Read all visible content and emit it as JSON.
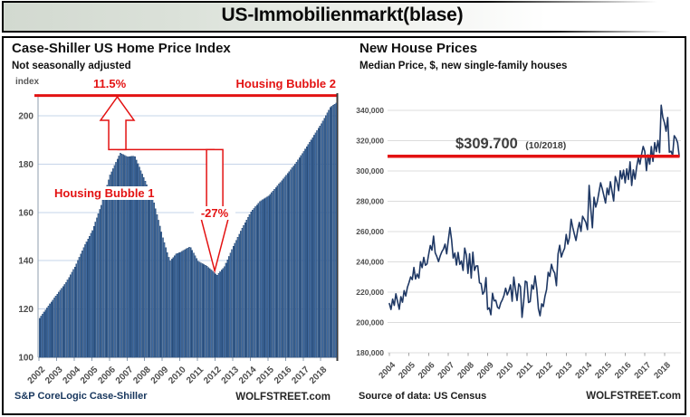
{
  "page": {
    "title": "US-Immobilienmarkt(blase)"
  },
  "colors": {
    "red": "#e31212",
    "bar_fill": "#3f6aa0",
    "bar_stroke": "#1d3a60",
    "line": "#1f3864",
    "grid_left": "#c6d4e9",
    "grid_right": "#dcdcdc",
    "axis": "#8c9cae",
    "tick_text": "#4d4d4d"
  },
  "chart_data": [
    {
      "type": "bar",
      "title": "Case-Shiller US Home Price Index",
      "subtitle": "Not seasonally adjusted",
      "unit_label": "index",
      "source_label": "S&P CoreLogic Case-Shiller",
      "brand_label": "WOLFSTREET.com",
      "ylim": [
        100,
        210
      ],
      "yticks": [
        100,
        120,
        140,
        160,
        180,
        200
      ],
      "xticks": [
        "2002",
        "2003",
        "2004",
        "2005",
        "2006",
        "2007",
        "2008",
        "2009",
        "2010",
        "2011",
        "2012",
        "2013",
        "2014",
        "2015",
        "2016",
        "2017",
        "2018"
      ],
      "x_start": 2002.0,
      "x_end": 2018.92,
      "anchors_year_value": [
        [
          2002.0,
          116.2
        ],
        [
          2002.5,
          121.3
        ],
        [
          2003.0,
          126.2
        ],
        [
          2003.5,
          131.0
        ],
        [
          2004.0,
          137.4
        ],
        [
          2004.5,
          145.5
        ],
        [
          2005.0,
          152.5
        ],
        [
          2005.5,
          163.0
        ],
        [
          2006.0,
          175.5
        ],
        [
          2006.58,
          184.6
        ],
        [
          2007.0,
          183.0
        ],
        [
          2007.4,
          183.4
        ],
        [
          2008.0,
          173.0
        ],
        [
          2008.5,
          164.0
        ],
        [
          2009.0,
          149.5
        ],
        [
          2009.4,
          139.8
        ],
        [
          2009.75,
          142.8
        ],
        [
          2010.0,
          143.5
        ],
        [
          2010.55,
          145.9
        ],
        [
          2011.0,
          139.8
        ],
        [
          2011.5,
          137.8
        ],
        [
          2012.08,
          134.0
        ],
        [
          2012.5,
          137.6
        ],
        [
          2013.0,
          146.0
        ],
        [
          2013.5,
          153.5
        ],
        [
          2014.0,
          160.3
        ],
        [
          2014.5,
          164.5
        ],
        [
          2015.0,
          166.8
        ],
        [
          2015.5,
          171.0
        ],
        [
          2016.0,
          175.4
        ],
        [
          2016.5,
          180.0
        ],
        [
          2017.0,
          185.3
        ],
        [
          2017.5,
          191.0
        ],
        [
          2018.0,
          196.8
        ],
        [
          2018.5,
          203.5
        ],
        [
          2018.92,
          205.8
        ]
      ],
      "annotations": {
        "peak_gain_label": "11.5%",
        "bubble2_label": "Housing Bubble 2",
        "bubble1_label": "Housing Bubble 1",
        "drop_label": "-27%",
        "top_line_value": 208.4,
        "prior_peak_line_value": 186.0,
        "up_arrow_x_year": 2006.45,
        "down_arrow_x_year": 2011.98,
        "trough_value": 135.8
      }
    },
    {
      "type": "line",
      "title": "New House Prices",
      "subtitle": "Median Price, $, new single-family houses",
      "source_label": "Source of data: US Census",
      "brand_label": "WOLFSTREET.com",
      "ylim": [
        180000,
        348000
      ],
      "yticks": [
        180000,
        200000,
        220000,
        240000,
        260000,
        280000,
        300000,
        320000,
        340000
      ],
      "ytick_labels": [
        "180,000",
        "200,000",
        "220,000",
        "240,000",
        "260,000",
        "280,000",
        "300,000",
        "320,000",
        "340,000"
      ],
      "xticks": [
        "2004",
        "2005",
        "2006",
        "2007",
        "2008",
        "2009",
        "2010",
        "2011",
        "2012",
        "2013",
        "2014",
        "2015",
        "2016",
        "2017",
        "2018"
      ],
      "x_start": 2004.0,
      "monthly_values": [
        212500,
        208600,
        215400,
        211300,
        218900,
        214000,
        208700,
        217000,
        213400,
        221000,
        217500,
        223100,
        226300,
        230100,
        228300,
        236300,
        228700,
        232000,
        229300,
        240100,
        236200,
        243000,
        237800,
        238600,
        244900,
        250800,
        247700,
        257000,
        246000,
        243500,
        240200,
        243900,
        246600,
        248400,
        251700,
        245300,
        254400,
        262600,
        254600,
        242500,
        245800,
        237900,
        246200,
        238300,
        240600,
        234300,
        249100,
        244600,
        232400,
        245300,
        229300,
        246400,
        234300,
        237300,
        237400,
        226200,
        225700,
        218700,
        220400,
        229600,
        208600,
        209700,
        205100,
        219200,
        214200,
        214700,
        210100,
        209200,
        212900,
        215000,
        217900,
        222600,
        218200,
        220900,
        224800,
        214000,
        230000,
        221800,
        214500,
        225500,
        223700,
        203400,
        213600,
        227300,
        226600,
        213200,
        213800,
        224700,
        222000,
        230700,
        222200,
        209100,
        204400,
        212300,
        210500,
        217200,
        221700,
        233100,
        230400,
        238400,
        234500,
        232600,
        224300,
        245300,
        250900,
        243200,
        246500,
        248900,
        258100,
        251700,
        256100,
        268100,
        262800,
        258300,
        254100,
        261100,
        266000,
        260100,
        270100,
        268100,
        266000,
        261300,
        290500,
        275200,
        262500,
        282600,
        276200,
        280000,
        286100,
        292200,
        288300,
        283700,
        278800,
        288600,
        284300,
        292900,
        286500,
        280200,
        296300,
        292700,
        287000,
        300100,
        294700,
        300500,
        292100,
        301400,
        294400,
        306000,
        290400,
        300700,
        294600,
        302600,
        308700,
        304500,
        310900,
        316200,
        312900,
        300200,
        310600,
        304500,
        316100,
        306300,
        318700,
        312800,
        320100,
        312100,
        343400,
        335400,
        331800,
        326200,
        335300,
        312400,
        313000,
        310400,
        323300,
        321500,
        318700,
        309700
      ],
      "annotation": {
        "label": "$309.700",
        "sub_label": "(10/2018)",
        "line_value": 309700
      }
    }
  ]
}
